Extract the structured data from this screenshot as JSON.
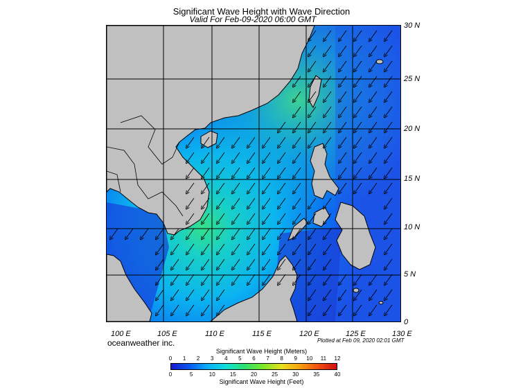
{
  "title": "Significant Wave Height with Wave Direction",
  "subtitle": "Valid For Feb-09-2020 06:00 GMT",
  "lat_labels": [
    "30 N",
    "25 N",
    "20 N",
    "15 N",
    "10 N",
    "5 N",
    "0"
  ],
  "lon_labels": [
    "100 E",
    "105 E",
    "110 E",
    "115 E",
    "120 E",
    "125 E",
    "130 E"
  ],
  "credit": "oceanweather inc.",
  "plotted": "Plotted at Feb 09, 2020 02:01 GMT",
  "colorbar": {
    "title_meters": "Significant Wave Height (Meters)",
    "title_feet": "Significant Wave Height (Feet)",
    "meters_ticks": [
      "0",
      "1",
      "2",
      "3",
      "4",
      "5",
      "6",
      "7",
      "8",
      "9",
      "10",
      "11",
      "12"
    ],
    "feet_ticks": [
      "0",
      "5",
      "10",
      "15",
      "20",
      "25",
      "30",
      "35",
      "40"
    ],
    "colors": [
      "#1a1ad0",
      "#0a58f0",
      "#0ab0f8",
      "#12e0d8",
      "#2ee070",
      "#7ae82a",
      "#e8e020",
      "#f8a010",
      "#f05010",
      "#d01010"
    ]
  },
  "map": {
    "region": "South China Sea",
    "lon_range": [
      100,
      130
    ],
    "lat_range": [
      0,
      30
    ],
    "land_color": "#c0c0c0",
    "wave_direction": "from northeast (arrows pointing southwest)"
  }
}
